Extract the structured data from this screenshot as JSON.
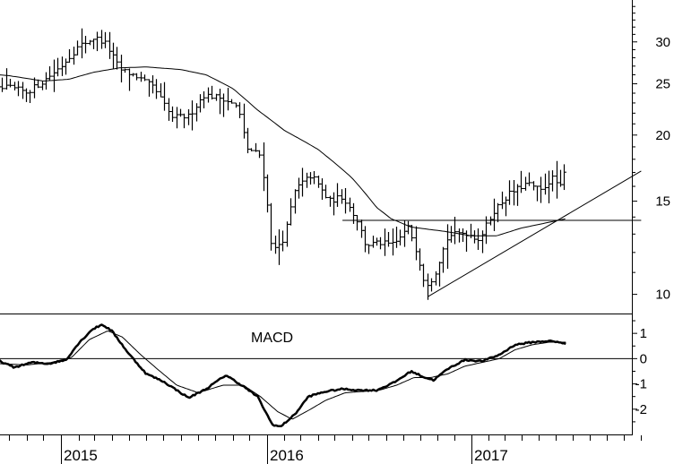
{
  "chart_data": [
    {
      "type": "line",
      "subtype": "ohlc-bars",
      "title": "",
      "scale": "log",
      "ylim": [
        9.2,
        36
      ],
      "yticks": [
        10,
        15,
        20,
        25,
        30
      ],
      "x_range": [
        "2014-08",
        "2017-11"
      ],
      "x_year_labels": [
        {
          "label": "2015",
          "date": "2015-01-01"
        },
        {
          "label": "2016",
          "date": "2016-01-01"
        },
        {
          "label": "2017",
          "date": "2017-01-01"
        }
      ],
      "price_path": [
        [
          "2014-08-01",
          26.5
        ],
        [
          "2014-09-01",
          24.3
        ],
        [
          "2014-10-01",
          24.6
        ],
        [
          "2014-11-01",
          24.1
        ],
        [
          "2014-12-01",
          25.3
        ],
        [
          "2015-01-01",
          27.0
        ],
        [
          "2015-02-01",
          29.4
        ],
        [
          "2015-03-01",
          30.6
        ],
        [
          "2015-03-20",
          29.8
        ],
        [
          "2015-04-15",
          26.6
        ],
        [
          "2015-05-15",
          25.8
        ],
        [
          "2015-06-15",
          24.5
        ],
        [
          "2015-07-15",
          21.6
        ],
        [
          "2015-08-15",
          21.7
        ],
        [
          "2015-09-10",
          23.8
        ],
        [
          "2015-10-15",
          23.5
        ],
        [
          "2015-11-10",
          22.5
        ],
        [
          "2015-11-25",
          18.9
        ],
        [
          "2015-12-20",
          18.3
        ],
        [
          "2016-01-10",
          12.0
        ],
        [
          "2016-02-01",
          12.8
        ],
        [
          "2016-02-20",
          15.8
        ],
        [
          "2016-03-20",
          16.8
        ],
        [
          "2016-04-20",
          15.0
        ],
        [
          "2016-05-15",
          15.3
        ],
        [
          "2016-06-10",
          13.8
        ],
        [
          "2016-06-25",
          12.4
        ],
        [
          "2016-07-20",
          12.5
        ],
        [
          "2016-08-15",
          12.4
        ],
        [
          "2016-09-10",
          13.4
        ],
        [
          "2016-09-25",
          12.0
        ],
        [
          "2016-10-10",
          10.4
        ],
        [
          "2016-10-25",
          10.8
        ],
        [
          "2016-11-20",
          12.9
        ],
        [
          "2016-12-20",
          13.1
        ],
        [
          "2017-01-15",
          12.7
        ],
        [
          "2017-02-10",
          14.4
        ],
        [
          "2017-03-10",
          15.5
        ],
        [
          "2017-04-10",
          16.2
        ],
        [
          "2017-05-05",
          15.7
        ],
        [
          "2017-05-25",
          16.6
        ],
        [
          "2017-06-10",
          15.9
        ],
        [
          "2017-06-20",
          17.6
        ]
      ],
      "moving_average": [
        [
          "2014-08-01",
          26.2
        ],
        [
          "2014-10-01",
          25.9
        ],
        [
          "2014-12-01",
          25.3
        ],
        [
          "2015-01-15",
          25.5
        ],
        [
          "2015-03-01",
          26.3
        ],
        [
          "2015-04-15",
          26.8
        ],
        [
          "2015-06-01",
          26.9
        ],
        [
          "2015-08-01",
          26.6
        ],
        [
          "2015-09-15",
          26.0
        ],
        [
          "2015-11-01",
          24.5
        ],
        [
          "2015-12-15",
          22.3
        ],
        [
          "2016-02-01",
          20.4
        ],
        [
          "2016-04-01",
          18.8
        ],
        [
          "2016-06-01",
          16.6
        ],
        [
          "2016-07-15",
          14.6
        ],
        [
          "2016-08-10",
          13.9
        ],
        [
          "2016-09-15",
          13.4
        ],
        [
          "2016-11-15",
          13.15
        ],
        [
          "2017-01-01",
          12.9
        ],
        [
          "2017-02-15",
          12.9
        ],
        [
          "2017-04-01",
          13.35
        ],
        [
          "2017-05-15",
          13.65
        ],
        [
          "2017-06-20",
          13.9
        ]
      ],
      "horizontal_line": {
        "value": 13.8,
        "from": "2016-05-15",
        "to": "2017-11"
      },
      "trend_line": [
        [
          "2016-10-15",
          9.9
        ],
        [
          "2017-11-01",
          17.1
        ]
      ],
      "series": [
        {
          "values_ref": "price_path",
          "color": "#000000"
        },
        {
          "values_ref": "moving_average",
          "color": "#000000"
        }
      ]
    },
    {
      "type": "line",
      "title": "MACD",
      "ylim": [
        -3.0,
        1.75
      ],
      "yticks": [
        1,
        0,
        -1,
        -2
      ],
      "zero_line": 0,
      "series": [
        {
          "color": "#000000",
          "points": [
            [
              "2014-08-01",
              -0.2
            ],
            [
              "2014-08-20",
              0.05
            ],
            [
              "2014-09-15",
              -0.1
            ],
            [
              "2014-10-10",
              -0.35
            ],
            [
              "2014-11-10",
              -0.15
            ],
            [
              "2014-12-10",
              -0.2
            ],
            [
              "2015-01-10",
              -0.05
            ],
            [
              "2015-02-01",
              0.6
            ],
            [
              "2015-02-25",
              1.15
            ],
            [
              "2015-03-15",
              1.35
            ],
            [
              "2015-04-01",
              1.1
            ],
            [
              "2015-05-01",
              0.2
            ],
            [
              "2015-06-01",
              -0.6
            ],
            [
              "2015-07-01",
              -0.9
            ],
            [
              "2015-08-15",
              -1.55
            ],
            [
              "2015-09-15",
              -1.2
            ],
            [
              "2015-10-20",
              -0.65
            ],
            [
              "2015-11-20",
              -1.1
            ],
            [
              "2015-12-15",
              -1.5
            ],
            [
              "2016-01-10",
              -2.6
            ],
            [
              "2016-01-25",
              -2.7
            ],
            [
              "2016-02-20",
              -2.2
            ],
            [
              "2016-03-15",
              -1.5
            ],
            [
              "2016-04-15",
              -1.3
            ],
            [
              "2016-05-15",
              -1.2
            ],
            [
              "2016-06-15",
              -1.25
            ],
            [
              "2016-07-15",
              -1.25
            ],
            [
              "2016-08-15",
              -0.95
            ],
            [
              "2016-09-15",
              -0.5
            ],
            [
              "2016-10-10",
              -0.75
            ],
            [
              "2016-10-25",
              -0.85
            ],
            [
              "2016-11-20",
              -0.4
            ],
            [
              "2016-12-20",
              -0.05
            ],
            [
              "2017-01-20",
              -0.1
            ],
            [
              "2017-02-20",
              0.15
            ],
            [
              "2017-03-20",
              0.55
            ],
            [
              "2017-04-20",
              0.65
            ],
            [
              "2017-05-20",
              0.7
            ],
            [
              "2017-06-20",
              0.6
            ]
          ]
        },
        {
          "color": "#000000",
          "points": [
            [
              "2014-08-01",
              -0.1
            ],
            [
              "2014-09-15",
              -0.2
            ],
            [
              "2014-11-01",
              -0.25
            ],
            [
              "2014-12-15",
              -0.15
            ],
            [
              "2015-01-20",
              0.05
            ],
            [
              "2015-02-20",
              0.75
            ],
            [
              "2015-03-25",
              1.1
            ],
            [
              "2015-04-20",
              0.85
            ],
            [
              "2015-05-20",
              0.2
            ],
            [
              "2015-06-20",
              -0.4
            ],
            [
              "2015-07-25",
              -1.05
            ],
            [
              "2015-09-01",
              -1.35
            ],
            [
              "2015-10-15",
              -1.05
            ],
            [
              "2015-11-20",
              -1.05
            ],
            [
              "2015-12-20",
              -1.5
            ],
            [
              "2016-01-20",
              -2.1
            ],
            [
              "2016-02-15",
              -2.4
            ],
            [
              "2016-03-15",
              -2.05
            ],
            [
              "2016-04-15",
              -1.65
            ],
            [
              "2016-05-20",
              -1.35
            ],
            [
              "2016-06-20",
              -1.3
            ],
            [
              "2016-07-20",
              -1.25
            ],
            [
              "2016-08-20",
              -1.05
            ],
            [
              "2016-09-20",
              -0.75
            ],
            [
              "2016-10-20",
              -0.75
            ],
            [
              "2016-11-20",
              -0.6
            ],
            [
              "2016-12-20",
              -0.3
            ],
            [
              "2017-01-20",
              -0.15
            ],
            [
              "2017-02-20",
              0.0
            ],
            [
              "2017-03-20",
              0.35
            ],
            [
              "2017-04-20",
              0.55
            ],
            [
              "2017-05-20",
              0.65
            ],
            [
              "2017-06-20",
              0.65
            ]
          ]
        }
      ]
    }
  ]
}
